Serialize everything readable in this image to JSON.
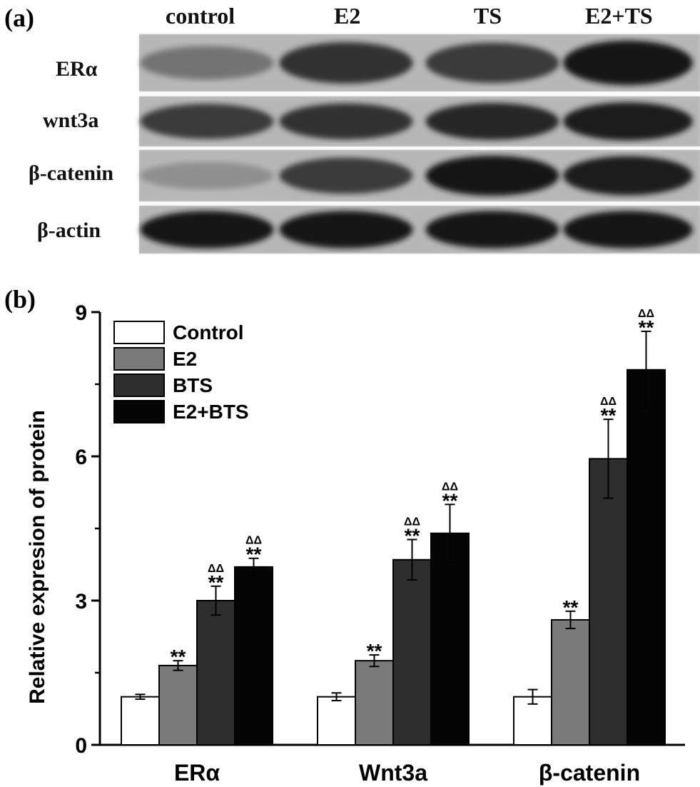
{
  "panel_a": {
    "label": "(a)",
    "columns": [
      "control",
      "E2",
      "TS",
      "E2+TS"
    ],
    "rows": [
      "ERα",
      "wnt3a",
      "β-catenin",
      "β-actin"
    ],
    "band_intensity": [
      [
        0.45,
        0.8,
        0.75,
        0.95
      ],
      [
        0.75,
        0.8,
        0.85,
        0.9
      ],
      [
        0.3,
        0.75,
        0.95,
        0.9
      ],
      [
        0.95,
        0.95,
        0.95,
        0.95
      ]
    ]
  },
  "panel_b": {
    "label": "(b)"
  },
  "chart_data": {
    "type": "bar",
    "categories": [
      "ERα",
      "Wnt3a",
      "β-catenin"
    ],
    "series": [
      {
        "name": "Control",
        "values": [
          1.0,
          1.0,
          1.0
        ],
        "errors": [
          0.05,
          0.08,
          0.15
        ],
        "color": "#ffffff",
        "marks": [
          "",
          "",
          ""
        ]
      },
      {
        "name": "E2",
        "values": [
          1.65,
          1.75,
          2.6
        ],
        "errors": [
          0.1,
          0.12,
          0.18
        ],
        "color": "#7a7a7a",
        "marks": [
          "**",
          "**",
          "**"
        ]
      },
      {
        "name": "BTS",
        "values": [
          3.0,
          3.85,
          5.95
        ],
        "errors": [
          0.3,
          0.42,
          0.82
        ],
        "color": "#2e2e2e",
        "marks": [
          "ΔΔ\n**",
          "ΔΔ\n**",
          "ΔΔ\n**"
        ]
      },
      {
        "name": "E2+BTS",
        "values": [
          3.7,
          4.4,
          7.8
        ],
        "errors": [
          0.18,
          0.6,
          0.8
        ],
        "color": "#050505",
        "marks": [
          "ΔΔ\n**",
          "ΔΔ\n**",
          "ΔΔ\n**"
        ]
      }
    ],
    "xlabel": "",
    "ylabel": "Relative expresion of protein",
    "ylim": [
      0,
      9
    ],
    "yticks": [
      "0",
      "3",
      "6",
      "9"
    ],
    "grid": false,
    "legend": "top-left"
  }
}
